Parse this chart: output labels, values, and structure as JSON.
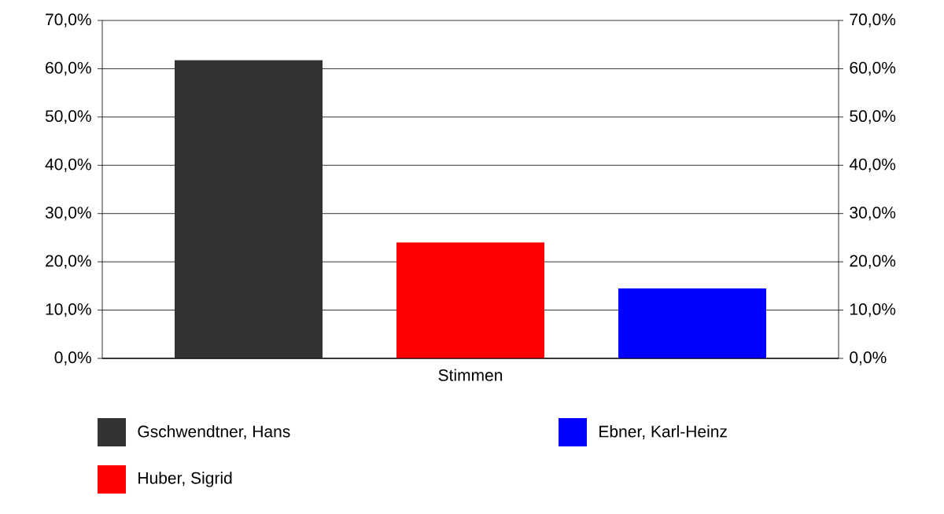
{
  "chart_data": {
    "type": "bar",
    "categories": [
      "Stimmen"
    ],
    "series": [
      {
        "name": "Gschwendtner, Hans",
        "color": "#333333",
        "values": [
          61.8
        ]
      },
      {
        "name": "Huber, Sigrid",
        "color": "#ff0000",
        "values": [
          24.0
        ]
      },
      {
        "name": "Ebner, Karl-Heinz",
        "color": "#0000ff",
        "values": [
          14.5
        ]
      }
    ],
    "ylim": [
      0,
      70
    ],
    "yticks": [
      {
        "value": 0,
        "label": "0,0%"
      },
      {
        "value": 10,
        "label": "10,0%"
      },
      {
        "value": 20,
        "label": "20,0%"
      },
      {
        "value": 30,
        "label": "30,0%"
      },
      {
        "value": 40,
        "label": "40,0%"
      },
      {
        "value": 50,
        "label": "50,0%"
      },
      {
        "value": 60,
        "label": "60,0%"
      },
      {
        "value": 70,
        "label": "70,0%"
      }
    ],
    "grid": "y",
    "legend": "bottom"
  }
}
